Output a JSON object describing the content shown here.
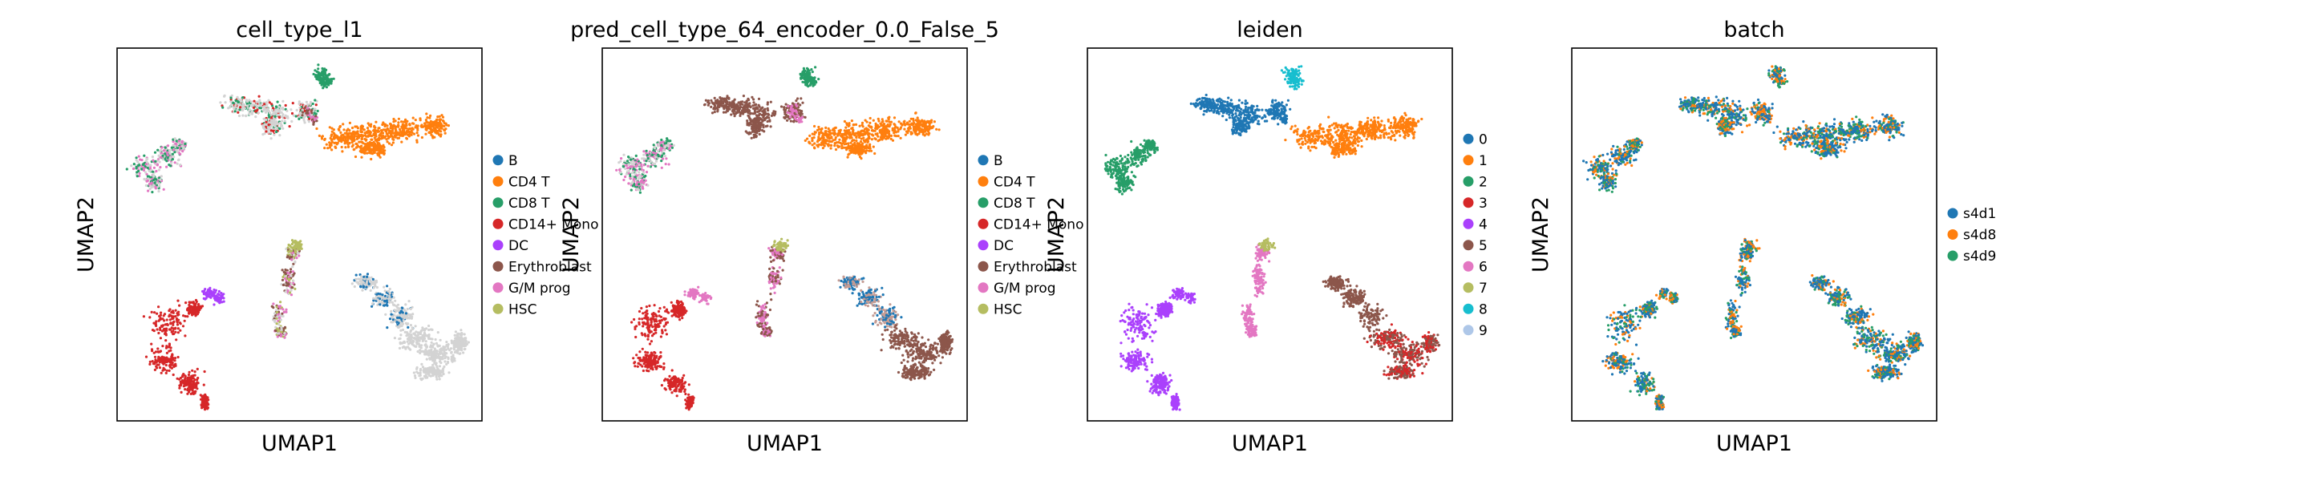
{
  "chart_data": [
    {
      "type": "scatter",
      "title": "cell_type_l1",
      "xlabel": "UMAP1",
      "ylabel": "UMAP2",
      "legend_position": "right",
      "grid": false,
      "ticks": "none",
      "series": [
        {
          "name": "B",
          "color": "#1f77b4"
        },
        {
          "name": "CD4 T",
          "color": "#ff7f0e"
        },
        {
          "name": "CD8 T",
          "color": "#279e68"
        },
        {
          "name": "CD14+ Mono",
          "color": "#d62728"
        },
        {
          "name": "DC",
          "color": "#aa40fc"
        },
        {
          "name": "Erythroblast",
          "color": "#8c564b"
        },
        {
          "name": "G/M prog",
          "color": "#e377c2"
        },
        {
          "name": "HSC",
          "color": "#b5bd61"
        }
      ]
    },
    {
      "type": "scatter",
      "title": "pred_cell_type_64_encoder_0.0_False_5",
      "xlabel": "UMAP1",
      "ylabel": "UMAP2",
      "legend_position": "right",
      "grid": false,
      "ticks": "none",
      "series": [
        {
          "name": "B",
          "color": "#1f77b4"
        },
        {
          "name": "CD4 T",
          "color": "#ff7f0e"
        },
        {
          "name": "CD8 T",
          "color": "#279e68"
        },
        {
          "name": "CD14+ Mono",
          "color": "#d62728"
        },
        {
          "name": "DC",
          "color": "#aa40fc"
        },
        {
          "name": "Erythroblast",
          "color": "#8c564b"
        },
        {
          "name": "G/M prog",
          "color": "#e377c2"
        },
        {
          "name": "HSC",
          "color": "#b5bd61"
        }
      ]
    },
    {
      "type": "scatter",
      "title": "leiden",
      "xlabel": "UMAP1",
      "ylabel": "UMAP2",
      "legend_position": "right",
      "grid": false,
      "ticks": "none",
      "series": [
        {
          "name": "0",
          "color": "#1f77b4"
        },
        {
          "name": "1",
          "color": "#ff7f0e"
        },
        {
          "name": "2",
          "color": "#279e68"
        },
        {
          "name": "3",
          "color": "#d62728"
        },
        {
          "name": "4",
          "color": "#aa40fc"
        },
        {
          "name": "5",
          "color": "#8c564b"
        },
        {
          "name": "6",
          "color": "#e377c2"
        },
        {
          "name": "7",
          "color": "#b5bd61"
        },
        {
          "name": "8",
          "color": "#17becf"
        },
        {
          "name": "9",
          "color": "#aec7e8"
        }
      ]
    },
    {
      "type": "scatter",
      "title": "batch",
      "xlabel": "UMAP1",
      "ylabel": "UMAP2",
      "legend_position": "right",
      "grid": false,
      "ticks": "none",
      "series": [
        {
          "name": "s4d1",
          "color": "#1f77b4"
        },
        {
          "name": "s4d8",
          "color": "#ff7f0e"
        },
        {
          "name": "s4d9",
          "color": "#279e68"
        }
      ]
    }
  ]
}
